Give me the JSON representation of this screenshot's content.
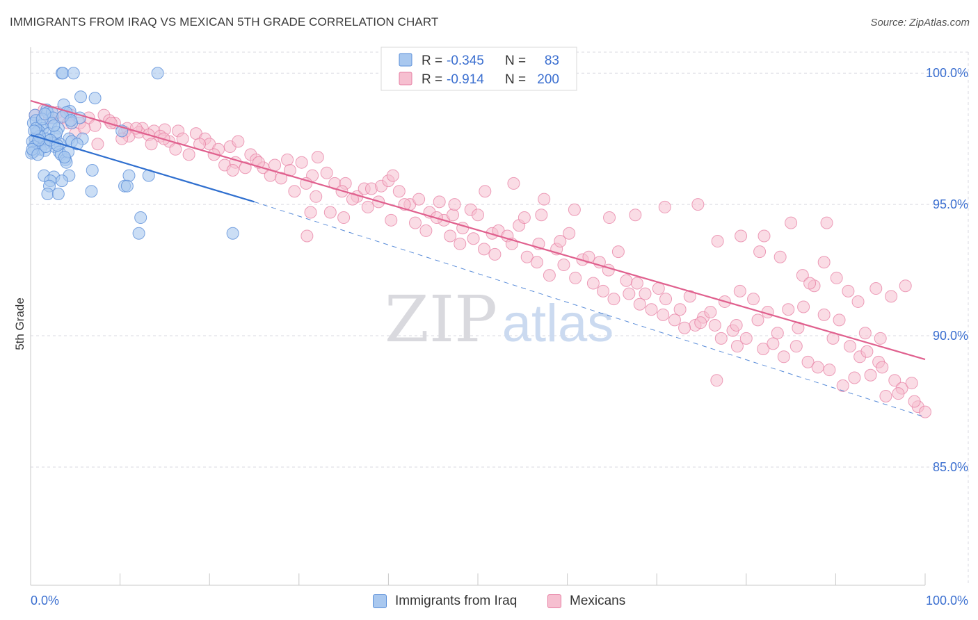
{
  "title": "IMMIGRANTS FROM IRAQ VS MEXICAN 5TH GRADE CORRELATION CHART",
  "source": "Source: ZipAtlas.com",
  "colors": {
    "blue_fill": "#a9c8ef",
    "blue_stroke": "#5b8fd9",
    "blue_line": "#2f6fcf",
    "pink_fill": "#f6bfd0",
    "pink_stroke": "#e77fa3",
    "pink_line": "#e0608e",
    "value_text": "#3b6fd0",
    "grid": "#d9d9e0"
  },
  "watermark": {
    "zip": "ZIP",
    "atlas": "atlas"
  },
  "legend_top": {
    "rows": [
      {
        "r_label": "R =",
        "r_value": "-0.345",
        "n_label": "N =",
        "n_value": "83"
      },
      {
        "r_label": "R =",
        "r_value": "-0.914",
        "n_label": "N =",
        "n_value": "200"
      }
    ]
  },
  "legend_bottom": {
    "items": [
      {
        "label": "Immigrants from Iraq"
      },
      {
        "label": "Mexicans"
      }
    ]
  },
  "chart_data": {
    "type": "scatter",
    "ylabel": "5th Grade",
    "xlim": [
      0,
      100
    ],
    "ylim": [
      80.5,
      100.8
    ],
    "x_tick_labels": [
      {
        "value": 0,
        "label": "0.0%"
      },
      {
        "value": 100,
        "label": "100.0%"
      }
    ],
    "y_tick_labels": [
      {
        "value": 100,
        "label": "100.0%"
      },
      {
        "value": 95,
        "label": "95.0%"
      },
      {
        "value": 90,
        "label": "90.0%"
      },
      {
        "value": 85,
        "label": "85.0%"
      }
    ],
    "x_minor_ticks": [
      0,
      10,
      20,
      30,
      40,
      50,
      60,
      70,
      80,
      90,
      100
    ],
    "grid": true,
    "legend_position": "top-center",
    "series": [
      {
        "name": "Immigrants from Iraq",
        "r": -0.345,
        "n": 83,
        "trend": {
          "x0": 0,
          "y0": 97.65,
          "x1": 25,
          "y1": 95.1,
          "dash_to_x": 100,
          "dash_to_y": 86.9
        },
        "points": [
          [
            3.5,
            100
          ],
          [
            3.6,
            100
          ],
          [
            4.8,
            100
          ],
          [
            14.2,
            100
          ],
          [
            5.6,
            99.1
          ],
          [
            7.2,
            99.05
          ],
          [
            3.7,
            98.8
          ],
          [
            4.4,
            98.55
          ],
          [
            1.8,
            98.6
          ],
          [
            1.9,
            98.5
          ],
          [
            2.4,
            98.5
          ],
          [
            0.5,
            98.4
          ],
          [
            4.0,
            98.5
          ],
          [
            2.5,
            98.3
          ],
          [
            5.5,
            98.3
          ],
          [
            0.3,
            98.1
          ],
          [
            0.6,
            98.2
          ],
          [
            1.2,
            98.0
          ],
          [
            2.3,
            98.1
          ],
          [
            4.6,
            98.1
          ],
          [
            1.4,
            97.9
          ],
          [
            0.9,
            97.8
          ],
          [
            10.2,
            97.8
          ],
          [
            3.1,
            97.9
          ],
          [
            2.0,
            97.7
          ],
          [
            0.7,
            97.75
          ],
          [
            2.8,
            97.6
          ],
          [
            0.5,
            97.5
          ],
          [
            4.3,
            97.5
          ],
          [
            5.8,
            97.5
          ],
          [
            1.2,
            97.4
          ],
          [
            0.8,
            97.35
          ],
          [
            2.5,
            97.35
          ],
          [
            3.3,
            97.3
          ],
          [
            4.6,
            97.4
          ],
          [
            1.8,
            97.5
          ],
          [
            0.2,
            97.4
          ],
          [
            1.5,
            97.3
          ],
          [
            0.4,
            97.2
          ],
          [
            1.1,
            97.1
          ],
          [
            2.7,
            97.2
          ],
          [
            0.3,
            97.0
          ],
          [
            1.6,
            97.05
          ],
          [
            3.2,
            97.0
          ],
          [
            3.4,
            96.9
          ],
          [
            0.1,
            96.95
          ],
          [
            3.9,
            96.7
          ],
          [
            4.0,
            96.6
          ],
          [
            6.9,
            96.3
          ],
          [
            1.5,
            96.1
          ],
          [
            2.6,
            96.05
          ],
          [
            4.3,
            96.1
          ],
          [
            11.0,
            96.1
          ],
          [
            13.2,
            96.1
          ],
          [
            2.2,
            95.9
          ],
          [
            3.5,
            95.9
          ],
          [
            2.1,
            95.7
          ],
          [
            10.5,
            95.7
          ],
          [
            10.8,
            95.7
          ],
          [
            1.9,
            95.4
          ],
          [
            3.1,
            95.4
          ],
          [
            6.8,
            95.5
          ],
          [
            12.3,
            94.5
          ],
          [
            12.1,
            93.9
          ],
          [
            22.6,
            93.9
          ],
          [
            0.2,
            97.1
          ],
          [
            1.0,
            97.6
          ],
          [
            2.9,
            97.75
          ],
          [
            0.6,
            97.9
          ],
          [
            1.3,
            98.25
          ],
          [
            3.6,
            98.35
          ],
          [
            4.5,
            98.2
          ],
          [
            0.8,
            96.9
          ],
          [
            1.7,
            97.2
          ],
          [
            2.2,
            97.45
          ],
          [
            3.0,
            97.25
          ],
          [
            0.4,
            97.8
          ],
          [
            1.6,
            98.45
          ],
          [
            2.6,
            98.0
          ],
          [
            4.2,
            97.0
          ],
          [
            0.9,
            97.45
          ],
          [
            3.8,
            96.8
          ],
          [
            5.2,
            97.3
          ]
        ]
      },
      {
        "name": "Mexicans",
        "r": -0.914,
        "n": 200,
        "trend": {
          "x0": 0,
          "y0": 98.95,
          "x1": 100,
          "y1": 89.1
        },
        "points": [
          [
            0.5,
            98.4
          ],
          [
            1.5,
            98.6
          ],
          [
            2.1,
            98.3
          ],
          [
            3.0,
            98.5
          ],
          [
            4.5,
            98.4
          ],
          [
            6.5,
            98.3
          ],
          [
            8.2,
            98.4
          ],
          [
            9.4,
            98.1
          ],
          [
            10.8,
            97.9
          ],
          [
            12.5,
            97.9
          ],
          [
            13.8,
            97.8
          ],
          [
            15.0,
            97.85
          ],
          [
            16.5,
            97.8
          ],
          [
            7.2,
            98.0
          ],
          [
            5.5,
            98.1
          ],
          [
            8.8,
            98.2
          ],
          [
            10.5,
            97.75
          ],
          [
            11.0,
            97.6
          ],
          [
            12.1,
            97.75
          ],
          [
            13.2,
            97.65
          ],
          [
            14.5,
            97.6
          ],
          [
            15.5,
            97.4
          ],
          [
            17.0,
            97.5
          ],
          [
            18.5,
            97.7
          ],
          [
            19.5,
            97.5
          ],
          [
            20.0,
            97.3
          ],
          [
            21.0,
            97.1
          ],
          [
            22.3,
            97.2
          ],
          [
            23.2,
            97.4
          ],
          [
            24.6,
            96.9
          ],
          [
            25.2,
            96.7
          ],
          [
            26.0,
            96.4
          ],
          [
            27.3,
            96.5
          ],
          [
            28.7,
            96.7
          ],
          [
            29.0,
            96.3
          ],
          [
            30.3,
            96.6
          ],
          [
            31.5,
            96.1
          ],
          [
            32.1,
            96.8
          ],
          [
            33.1,
            96.2
          ],
          [
            34.0,
            95.8
          ],
          [
            35.2,
            95.8
          ],
          [
            36.5,
            95.3
          ],
          [
            37.3,
            95.6
          ],
          [
            38.1,
            95.6
          ],
          [
            39.2,
            95.7
          ],
          [
            40.0,
            95.9
          ],
          [
            41.2,
            95.5
          ],
          [
            42.4,
            95.0
          ],
          [
            43.4,
            95.2
          ],
          [
            44.6,
            94.7
          ],
          [
            45.7,
            95.1
          ],
          [
            46.2,
            94.4
          ],
          [
            47.2,
            94.6
          ],
          [
            48.3,
            94.1
          ],
          [
            49.2,
            94.8
          ],
          [
            50.0,
            94.6
          ],
          [
            51.6,
            93.9
          ],
          [
            52.3,
            94.0
          ],
          [
            53.3,
            93.8
          ],
          [
            54.6,
            94.2
          ],
          [
            55.2,
            94.5
          ],
          [
            56.8,
            93.5
          ],
          [
            57.1,
            94.6
          ],
          [
            58.8,
            93.3
          ],
          [
            59.2,
            93.6
          ],
          [
            60.2,
            93.9
          ],
          [
            61.7,
            92.9
          ],
          [
            62.4,
            93.0
          ],
          [
            63.6,
            92.8
          ],
          [
            64.6,
            92.5
          ],
          [
            65.7,
            93.2
          ],
          [
            66.6,
            92.1
          ],
          [
            67.8,
            92.0
          ],
          [
            68.7,
            91.6
          ],
          [
            70.2,
            91.8
          ],
          [
            71.0,
            91.4
          ],
          [
            72.6,
            91.0
          ],
          [
            73.7,
            91.5
          ],
          [
            74.3,
            90.4
          ],
          [
            75.2,
            90.7
          ],
          [
            76.5,
            90.4
          ],
          [
            77.6,
            91.3
          ],
          [
            78.5,
            90.2
          ],
          [
            79.3,
            91.7
          ],
          [
            80.8,
            91.4
          ],
          [
            81.3,
            90.6
          ],
          [
            82.4,
            90.9
          ],
          [
            83.5,
            90.1
          ],
          [
            84.7,
            91.0
          ],
          [
            85.8,
            90.3
          ],
          [
            86.4,
            91.1
          ],
          [
            87.6,
            91.9
          ],
          [
            88.7,
            90.8
          ],
          [
            89.7,
            89.9
          ],
          [
            90.4,
            90.6
          ],
          [
            91.6,
            89.6
          ],
          [
            92.7,
            89.2
          ],
          [
            93.5,
            89.4
          ],
          [
            94.8,
            89.0
          ],
          [
            95.2,
            88.8
          ],
          [
            96.6,
            88.3
          ],
          [
            97.4,
            88.0
          ],
          [
            98.5,
            88.2
          ],
          [
            99.2,
            87.3
          ],
          [
            100.0,
            87.1
          ],
          [
            3.5,
            98.3
          ],
          [
            4.2,
            98.1
          ],
          [
            5.0,
            97.7
          ],
          [
            6.0,
            97.9
          ],
          [
            7.5,
            97.3
          ],
          [
            9.0,
            98.1
          ],
          [
            10.2,
            97.5
          ],
          [
            11.8,
            97.9
          ],
          [
            13.5,
            97.3
          ],
          [
            14.9,
            97.5
          ],
          [
            16.2,
            97.1
          ],
          [
            17.7,
            96.9
          ],
          [
            18.9,
            97.3
          ],
          [
            20.5,
            96.9
          ],
          [
            21.7,
            96.5
          ],
          [
            22.9,
            96.6
          ],
          [
            24.0,
            96.4
          ],
          [
            25.5,
            96.6
          ],
          [
            26.8,
            96.1
          ],
          [
            28.0,
            96.0
          ],
          [
            29.5,
            95.5
          ],
          [
            30.8,
            95.8
          ],
          [
            31.9,
            95.3
          ],
          [
            33.5,
            94.7
          ],
          [
            34.8,
            95.5
          ],
          [
            36.0,
            95.2
          ],
          [
            37.7,
            94.9
          ],
          [
            38.9,
            95.1
          ],
          [
            40.3,
            94.4
          ],
          [
            41.8,
            95.0
          ],
          [
            43.0,
            94.3
          ],
          [
            44.2,
            94.0
          ],
          [
            45.4,
            94.5
          ],
          [
            46.9,
            93.8
          ],
          [
            48.0,
            93.5
          ],
          [
            49.5,
            93.7
          ],
          [
            50.7,
            93.3
          ],
          [
            51.9,
            93.1
          ],
          [
            53.8,
            93.5
          ],
          [
            55.5,
            93.0
          ],
          [
            56.6,
            92.8
          ],
          [
            58.0,
            92.3
          ],
          [
            59.6,
            92.7
          ],
          [
            60.9,
            92.2
          ],
          [
            62.9,
            92.0
          ],
          [
            64.0,
            91.7
          ],
          [
            65.2,
            91.4
          ],
          [
            66.9,
            91.6
          ],
          [
            68.1,
            91.2
          ],
          [
            69.4,
            91.0
          ],
          [
            70.7,
            90.8
          ],
          [
            72.0,
            90.6
          ],
          [
            73.1,
            90.3
          ],
          [
            74.9,
            90.5
          ],
          [
            76.0,
            90.9
          ],
          [
            77.2,
            89.9
          ],
          [
            78.9,
            90.4
          ],
          [
            80.0,
            89.9
          ],
          [
            81.9,
            89.5
          ],
          [
            83.0,
            89.7
          ],
          [
            84.2,
            89.2
          ],
          [
            85.6,
            89.6
          ],
          [
            86.9,
            89.0
          ],
          [
            88.0,
            88.8
          ],
          [
            89.3,
            88.7
          ],
          [
            90.8,
            88.1
          ],
          [
            92.1,
            88.4
          ],
          [
            93.9,
            88.5
          ],
          [
            95.6,
            87.7
          ],
          [
            97.0,
            87.8
          ],
          [
            98.8,
            87.5
          ],
          [
            30.9,
            93.8
          ],
          [
            22.6,
            96.3
          ],
          [
            31.3,
            94.7
          ],
          [
            35.0,
            94.5
          ],
          [
            40.5,
            96.1
          ],
          [
            47.4,
            95.0
          ],
          [
            50.8,
            95.5
          ],
          [
            54.0,
            95.8
          ],
          [
            57.4,
            95.2
          ],
          [
            60.8,
            94.8
          ],
          [
            64.7,
            94.5
          ],
          [
            67.6,
            94.6
          ],
          [
            70.9,
            94.9
          ],
          [
            74.6,
            95.0
          ],
          [
            76.8,
            93.6
          ],
          [
            79.4,
            93.8
          ],
          [
            81.5,
            93.2
          ],
          [
            83.8,
            93.0
          ],
          [
            86.3,
            92.3
          ],
          [
            88.7,
            92.8
          ],
          [
            90.1,
            92.2
          ],
          [
            92.5,
            91.3
          ],
          [
            94.5,
            91.8
          ],
          [
            96.2,
            91.5
          ],
          [
            97.8,
            91.9
          ],
          [
            82.0,
            93.8
          ],
          [
            85.0,
            94.3
          ],
          [
            87.1,
            92.0
          ],
          [
            89.0,
            94.3
          ],
          [
            91.4,
            91.7
          ],
          [
            93.3,
            90.1
          ],
          [
            95.0,
            89.9
          ],
          [
            79.0,
            89.6
          ],
          [
            76.7,
            88.3
          ]
        ]
      }
    ]
  }
}
